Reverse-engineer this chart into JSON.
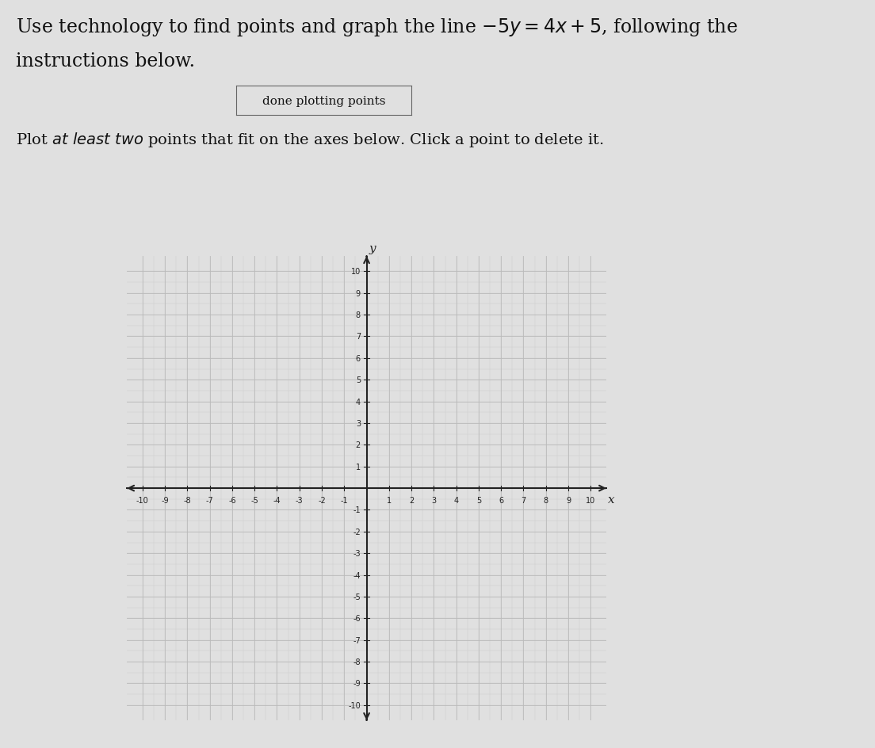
{
  "title_line1": "Use technology to find points and graph the line $-5y = 4x + 5$, following the",
  "title_line2": "instructions below.",
  "button_text": "done plotting points",
  "instruction_text": "Plot at least two points that fit on the axes below. Click a point to delete it.",
  "axis_range": [
    -10,
    10
  ],
  "grid_minor_color": "#cccccc",
  "grid_major_color": "#bbbbbb",
  "axis_color": "#222222",
  "background_color": "#f0f0f0",
  "figure_background": "#e0e0e0",
  "xlabel": "x",
  "ylabel": "y",
  "title_fontsize": 17,
  "instruction_fontsize": 14,
  "button_fontsize": 11,
  "tick_fontsize": 7
}
